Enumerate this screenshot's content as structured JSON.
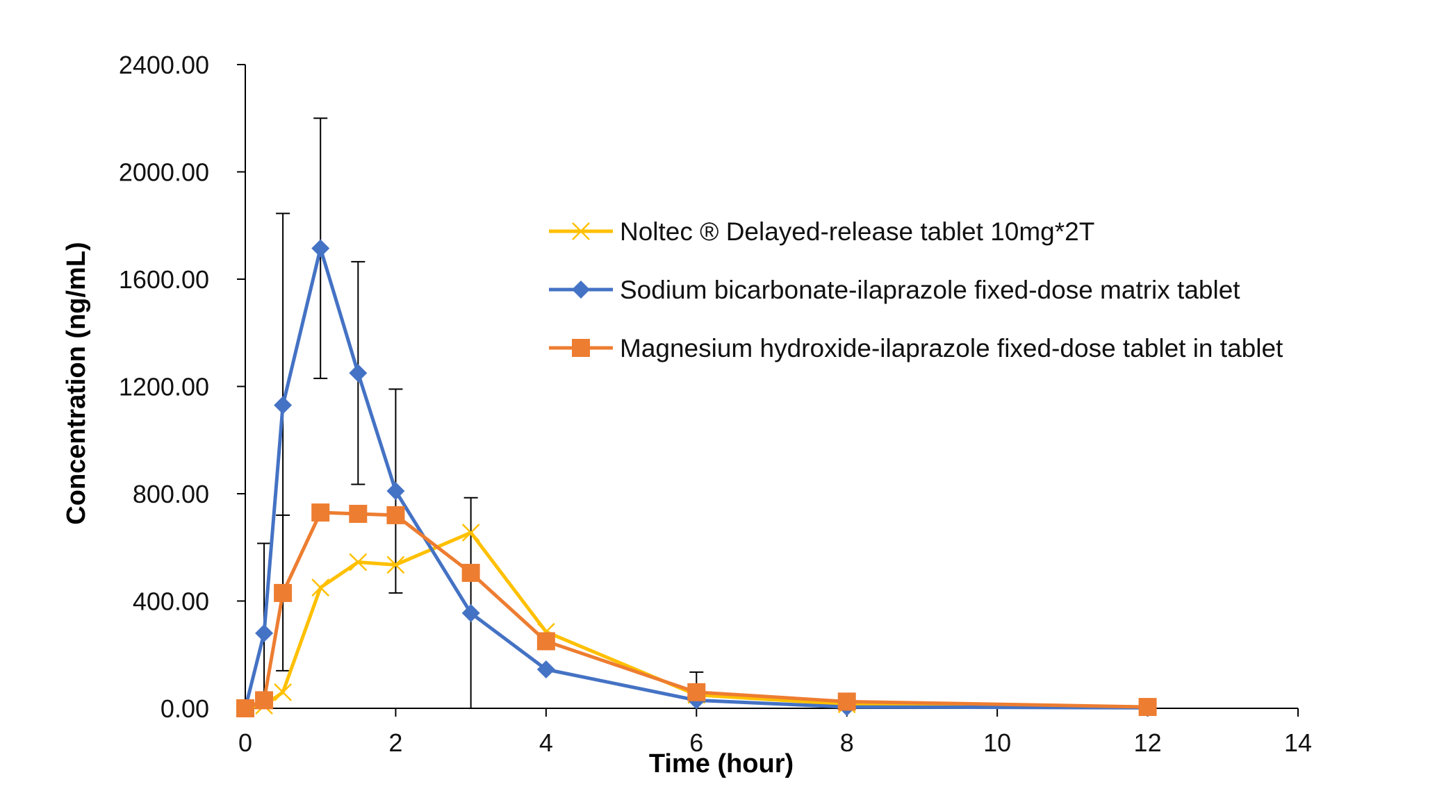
{
  "chart_data": {
    "type": "line",
    "title": "",
    "xlabel": "Time (hour)",
    "ylabel": "Concentration (ng/mL)",
    "xlim": [
      0,
      14
    ],
    "ylim": [
      0,
      2400
    ],
    "x_ticks": [
      0,
      2,
      4,
      6,
      8,
      10,
      12,
      14
    ],
    "y_ticks": [
      0,
      400,
      800,
      1200,
      1600,
      2000,
      2400
    ],
    "x_tick_labels": [
      "0",
      "2",
      "4",
      "6",
      "8",
      "10",
      "12",
      "14"
    ],
    "y_tick_labels": [
      "0.00",
      "400.00",
      "800.00",
      "1200.00",
      "1600.00",
      "2000.00",
      "2400.00"
    ],
    "grid": false,
    "legend_position": "right",
    "series": [
      {
        "name": "Noltec ® Delayed-release tablet 10mg*2T",
        "color": "#FFC000",
        "marker": "x",
        "x": [
          0,
          0.25,
          0.5,
          1,
          1.5,
          2,
          3,
          4,
          6,
          8,
          12
        ],
        "y": [
          0,
          10,
          60,
          450,
          545,
          535,
          655,
          285,
          50,
          15,
          5
        ],
        "error": [
          0,
          0,
          0,
          0,
          0,
          0,
          0,
          0,
          0,
          0,
          0
        ]
      },
      {
        "name": "Sodium bicarbonate-ilaprazole fixed-dose matrix tablet",
        "color": "#4472C4",
        "marker": "diamond",
        "x": [
          0,
          0.25,
          0.5,
          1,
          1.5,
          2,
          3,
          4,
          6,
          8,
          12
        ],
        "y": [
          0,
          280,
          1130,
          1715,
          1250,
          810,
          355,
          145,
          30,
          5,
          2
        ],
        "error": [
          0,
          335,
          715,
          485,
          415,
          380,
          430,
          0,
          0,
          0,
          0
        ]
      },
      {
        "name": "Magnesium hydroxide-ilaprazole fixed-dose tablet in tablet",
        "color": "#ED7D31",
        "marker": "square",
        "x": [
          0,
          0.25,
          0.5,
          1,
          1.5,
          2,
          3,
          4,
          6,
          8,
          12
        ],
        "y": [
          0,
          30,
          430,
          730,
          725,
          720,
          505,
          250,
          60,
          25,
          5
        ],
        "error": [
          0,
          0,
          290,
          0,
          0,
          0,
          0,
          0,
          75,
          0,
          0
        ]
      }
    ]
  },
  "legend": {
    "items": [
      "Noltec ® Delayed-release tablet 10mg*2T",
      "Sodium bicarbonate-ilaprazole fixed-dose matrix tablet",
      "Magnesium hydroxide-ilaprazole fixed-dose tablet in tablet"
    ]
  }
}
